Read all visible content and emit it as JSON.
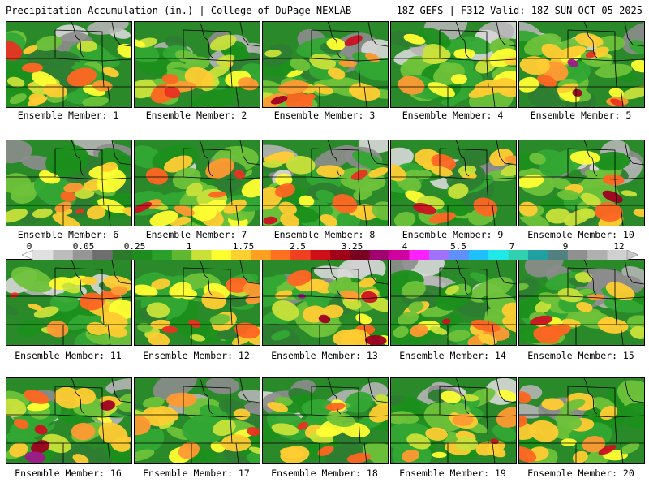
{
  "header": {
    "title": "Precipitation Accumulation (in.) | College of DuPage NEXLAB",
    "run_info": "18Z GEFS | F312 Valid: 18Z SUN OCT 05 2025"
  },
  "colorbar": {
    "labels": [
      "0",
      "0.05",
      "0.25",
      "1",
      "1.75",
      "2.5",
      "3.25",
      "4",
      "5.5",
      "7",
      "9",
      "12"
    ],
    "colors": [
      "#e0e0e0",
      "#bcbcbc",
      "#969696",
      "#6e6e6e",
      "#2a7a2a",
      "#1e8c1e",
      "#2aa02a",
      "#60b830",
      "#c8e038",
      "#ffff30",
      "#ffd030",
      "#ffa020",
      "#ff7020",
      "#f04020",
      "#d01018",
      "#a00018",
      "#780020",
      "#a00070",
      "#d000a0",
      "#ff20ff",
      "#a070ff",
      "#6090ff",
      "#20c0ff",
      "#20e8e8",
      "#30d0b0",
      "#20a0a0",
      "#508080",
      "#909090",
      "#b0b0b0",
      "#d0d0d0"
    ]
  },
  "members": [
    {
      "label": "Ensemble Member: 1",
      "seed": 11,
      "hot": 0.55,
      "gray": 0.35
    },
    {
      "label": "Ensemble Member: 2",
      "seed": 23,
      "hot": 0.5,
      "gray": 0.45
    },
    {
      "label": "Ensemble Member: 3",
      "seed": 37,
      "hot": 0.75,
      "gray": 0.3
    },
    {
      "label": "Ensemble Member: 4",
      "seed": 41,
      "hot": 0.35,
      "gray": 0.5
    },
    {
      "label": "Ensemble Member: 5",
      "seed": 53,
      "hot": 0.8,
      "gray": 0.4
    },
    {
      "label": "Ensemble Member: 6",
      "seed": 61,
      "hot": 0.6,
      "gray": 0.35
    },
    {
      "label": "Ensemble Member: 7",
      "seed": 73,
      "hot": 0.7,
      "gray": 0.2
    },
    {
      "label": "Ensemble Member: 8",
      "seed": 89,
      "hot": 0.65,
      "gray": 0.4
    },
    {
      "label": "Ensemble Member: 9",
      "seed": 97,
      "hot": 0.55,
      "gray": 0.25
    },
    {
      "label": "Ensemble Member: 10",
      "seed": 103,
      "hot": 0.45,
      "gray": 0.55
    },
    {
      "label": "Ensemble Member: 11",
      "seed": 113,
      "hot": 0.55,
      "gray": 0.45
    },
    {
      "label": "Ensemble Member: 12",
      "seed": 127,
      "hot": 0.75,
      "gray": 0.15
    },
    {
      "label": "Ensemble Member: 13",
      "seed": 131,
      "hot": 0.9,
      "gray": 0.45
    },
    {
      "label": "Ensemble Member: 14",
      "seed": 149,
      "hot": 0.6,
      "gray": 0.35
    },
    {
      "label": "Ensemble Member: 15",
      "seed": 157,
      "hot": 0.55,
      "gray": 0.55
    },
    {
      "label": "Ensemble Member: 16",
      "seed": 163,
      "hot": 0.8,
      "gray": 0.4
    },
    {
      "label": "Ensemble Member: 17",
      "seed": 173,
      "hot": 0.45,
      "gray": 0.45
    },
    {
      "label": "Ensemble Member: 18",
      "seed": 181,
      "hot": 0.5,
      "gray": 0.5
    },
    {
      "label": "Ensemble Member: 19",
      "seed": 191,
      "hot": 0.6,
      "gray": 0.35
    },
    {
      "label": "Ensemble Member: 20",
      "seed": 199,
      "hot": 0.45,
      "gray": 0.25
    }
  ]
}
